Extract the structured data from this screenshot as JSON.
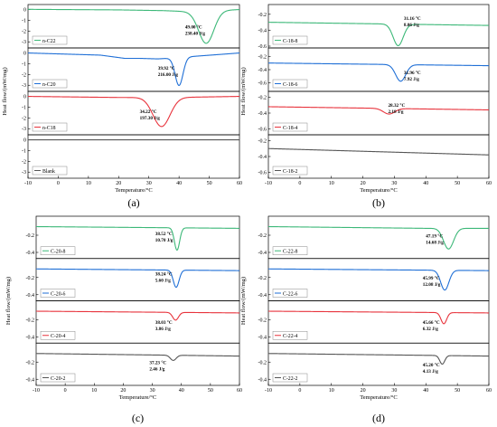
{
  "chart_data": [
    {
      "type": "line",
      "panel_label": "(a)",
      "xlabel": "Temperature/°C",
      "ylabel": "Heat flow/(mW/mg)",
      "xlim": [
        -10,
        60
      ],
      "x_ticks": [
        -10,
        0,
        10,
        20,
        30,
        40,
        50,
        60
      ],
      "stacked_subplots": [
        {
          "name": "n-C22",
          "color": "#3cb878",
          "ylim": [
            -3.4,
            0.3
          ],
          "y_ticks": [
            0,
            -1,
            -2,
            -3
          ],
          "baseline": [
            [
              -10,
              0.02
            ],
            [
              20,
              -0.03
            ],
            [
              35,
              -0.1
            ],
            [
              44,
              -0.2
            ],
            [
              60,
              0.0
            ]
          ],
          "peaks": [
            {
              "x": 49.0,
              "depth": -3.0,
              "sigma": 2.5
            }
          ],
          "annotation": [
            "49.00 °C",
            "238.40 J/g"
          ]
        },
        {
          "name": "n-C20",
          "color": "#1f6fd6",
          "ylim": [
            -3.4,
            0.3
          ],
          "y_ticks": [
            0,
            -1,
            -2,
            -3
          ],
          "baseline": [
            [
              -10,
              0.0
            ],
            [
              14,
              -0.2
            ],
            [
              22,
              -0.5
            ],
            [
              27,
              -0.5
            ],
            [
              33,
              -0.55
            ],
            [
              36,
              -0.5
            ],
            [
              60,
              0.0
            ]
          ],
          "peaks": [
            {
              "x": 40.0,
              "depth": -2.6,
              "sigma": 1.3
            }
          ],
          "annotation": [
            "39.92 °C",
            "216.00 J/g"
          ]
        },
        {
          "name": "n-C18",
          "color": "#e8333c",
          "ylim": [
            -3.4,
            0.3
          ],
          "y_ticks": [
            0,
            -1,
            -2,
            -3
          ],
          "baseline": [
            [
              -10,
              0.0
            ],
            [
              20,
              -0.1
            ],
            [
              38,
              -0.1
            ],
            [
              60,
              0.0
            ]
          ],
          "peaks": [
            {
              "x": 34.2,
              "depth": -2.7,
              "sigma": 2.8
            }
          ],
          "annotation": [
            "34.22 °C",
            "197.30 J/g"
          ]
        },
        {
          "name": "Blank",
          "color": "#555555",
          "ylim": [
            -3.4,
            0.3
          ],
          "y_ticks": [
            0,
            -1,
            -2,
            -3
          ],
          "baseline": [
            [
              -10,
              0.0
            ],
            [
              60,
              0.0
            ]
          ],
          "peaks": [],
          "annotation": []
        }
      ]
    },
    {
      "type": "line",
      "panel_label": "(b)",
      "xlabel": "Temperature/°C",
      "ylabel": "Heat flow/(mW/mg)",
      "xlim": [
        -10,
        60
      ],
      "x_ticks": [
        -10,
        0,
        10,
        20,
        30,
        40,
        50,
        60
      ],
      "stacked_subplots": [
        {
          "name": "C-18-8",
          "color": "#3cb878",
          "ylim": [
            -0.6,
            -0.1
          ],
          "y_ticks": [
            -0.2,
            -0.4,
            -0.6
          ],
          "baseline": [
            [
              -10,
              -0.3
            ],
            [
              60,
              -0.34
            ]
          ],
          "peaks": [
            {
              "x": 31.2,
              "depth": -0.27,
              "sigma": 1.6
            }
          ],
          "annotation": [
            "31.16 °C",
            "8.06 J/g"
          ]
        },
        {
          "name": "C-18-6",
          "color": "#1f6fd6",
          "ylim": [
            -0.7,
            -0.1
          ],
          "y_ticks": [
            -0.2,
            -0.4,
            -0.6
          ],
          "baseline": [
            [
              -10,
              -0.3
            ],
            [
              60,
              -0.34
            ]
          ],
          "peaks": [
            {
              "x": 32.0,
              "depth": -0.25,
              "sigma": 1.6
            }
          ],
          "annotation": [
            "31.96 °C",
            "7.92 J/g"
          ]
        },
        {
          "name": "C-18-4",
          "color": "#e8333c",
          "ylim": [
            -0.65,
            -0.15
          ],
          "y_ticks": [
            -0.2,
            -0.4,
            -0.6
          ],
          "baseline": [
            [
              -10,
              -0.32
            ],
            [
              60,
              -0.36
            ]
          ],
          "peaks": [
            {
              "x": 28.3,
              "depth": -0.07,
              "sigma": 1.8
            }
          ],
          "annotation": [
            "28.32 °C",
            "2.18 J/g"
          ]
        },
        {
          "name": "C-18-2",
          "color": "#555555",
          "ylim": [
            -0.65,
            -0.15
          ],
          "y_ticks": [
            -0.2,
            -0.4,
            -0.6
          ],
          "baseline": [
            [
              -10,
              -0.3
            ],
            [
              60,
              -0.38
            ]
          ],
          "peaks": [],
          "annotation": []
        }
      ]
    },
    {
      "type": "line",
      "panel_label": "(c)",
      "xlabel": "Temperature/°C",
      "ylabel": "Heat flow/(mW/mg)",
      "xlim": [
        -10,
        60
      ],
      "x_ticks": [
        -10,
        0,
        10,
        20,
        30,
        40,
        50,
        60
      ],
      "stacked_subplots": [
        {
          "name": "C-20-8",
          "color": "#3cb878",
          "ylim": [
            -0.45,
            0.0
          ],
          "y_ticks": [
            -0.2,
            -0.4
          ],
          "baseline": [
            [
              -10,
              -0.1
            ],
            [
              60,
              -0.12
            ]
          ],
          "peaks": [
            {
              "x": 38.5,
              "depth": -0.26,
              "sigma": 0.9
            }
          ],
          "annotation": [
            "38.52 °C",
            "10.70 J/g"
          ]
        },
        {
          "name": "C-20-6",
          "color": "#1f6fd6",
          "ylim": [
            -0.45,
            0.0
          ],
          "y_ticks": [
            -0.2,
            -0.4
          ],
          "baseline": [
            [
              -10,
              -0.1
            ],
            [
              60,
              -0.12
            ]
          ],
          "peaks": [
            {
              "x": 38.2,
              "depth": -0.2,
              "sigma": 1.0
            }
          ],
          "annotation": [
            "38.24 °C",
            "5.60 J/g"
          ]
        },
        {
          "name": "C-20-4",
          "color": "#e8333c",
          "ylim": [
            -0.45,
            0.0
          ],
          "y_ticks": [
            -0.2,
            -0.4
          ],
          "baseline": [
            [
              -10,
              -0.1
            ],
            [
              60,
              -0.12
            ]
          ],
          "peaks": [
            {
              "x": 38.0,
              "depth": -0.09,
              "sigma": 1.0
            }
          ],
          "annotation": [
            "38.03 °C",
            "3.86 J/g"
          ]
        },
        {
          "name": "C-20-2",
          "color": "#555555",
          "ylim": [
            -0.45,
            0.0
          ],
          "y_ticks": [
            -0.2,
            -0.4
          ],
          "baseline": [
            [
              -10,
              -0.1
            ],
            [
              60,
              -0.13
            ]
          ],
          "peaks": [
            {
              "x": 37.2,
              "depth": -0.06,
              "sigma": 1.0
            }
          ],
          "annotation": [
            "37.23 °C",
            "2.46 J/g"
          ]
        }
      ]
    },
    {
      "type": "line",
      "panel_label": "(d)",
      "xlabel": "Temperature/°C",
      "ylabel": "Heat flow/(mW/mg)",
      "xlim": [
        -10,
        60
      ],
      "x_ticks": [
        -10,
        0,
        10,
        20,
        30,
        40,
        50,
        60
      ],
      "stacked_subplots": [
        {
          "name": "C-22-8",
          "color": "#3cb878",
          "ylim": [
            -0.45,
            0.0
          ],
          "y_ticks": [
            -0.2,
            -0.4
          ],
          "baseline": [
            [
              -10,
              -0.1
            ],
            [
              40,
              -0.12
            ],
            [
              60,
              -0.12
            ]
          ],
          "peaks": [
            {
              "x": 47.2,
              "depth": -0.24,
              "sigma": 1.6
            }
          ],
          "annotation": [
            "47.19 °C",
            "14.68 J/g"
          ]
        },
        {
          "name": "C-22-6",
          "color": "#1f6fd6",
          "ylim": [
            -0.45,
            0.0
          ],
          "y_ticks": [
            -0.2,
            -0.4
          ],
          "baseline": [
            [
              -10,
              -0.1
            ],
            [
              60,
              -0.12
            ]
          ],
          "peaks": [
            {
              "x": 46.0,
              "depth": -0.23,
              "sigma": 1.3
            }
          ],
          "annotation": [
            "45.99 °C",
            "12.08 J/g"
          ]
        },
        {
          "name": "C-22-4",
          "color": "#e8333c",
          "ylim": [
            -0.45,
            0.0
          ],
          "y_ticks": [
            -0.2,
            -0.4
          ],
          "baseline": [
            [
              -10,
              -0.1
            ],
            [
              60,
              -0.12
            ]
          ],
          "peaks": [
            {
              "x": 45.7,
              "depth": -0.13,
              "sigma": 0.9
            }
          ],
          "annotation": [
            "45.66 °C",
            "6.32 J/g"
          ]
        },
        {
          "name": "C-22-2",
          "color": "#555555",
          "ylim": [
            -0.45,
            0.0
          ],
          "y_ticks": [
            -0.2,
            -0.4
          ],
          "baseline": [
            [
              -10,
              -0.1
            ],
            [
              60,
              -0.13
            ]
          ],
          "peaks": [
            {
              "x": 45.2,
              "depth": -0.1,
              "sigma": 0.8
            }
          ],
          "annotation": [
            "45.20 °C",
            "4.13 J/g"
          ]
        }
      ]
    }
  ]
}
